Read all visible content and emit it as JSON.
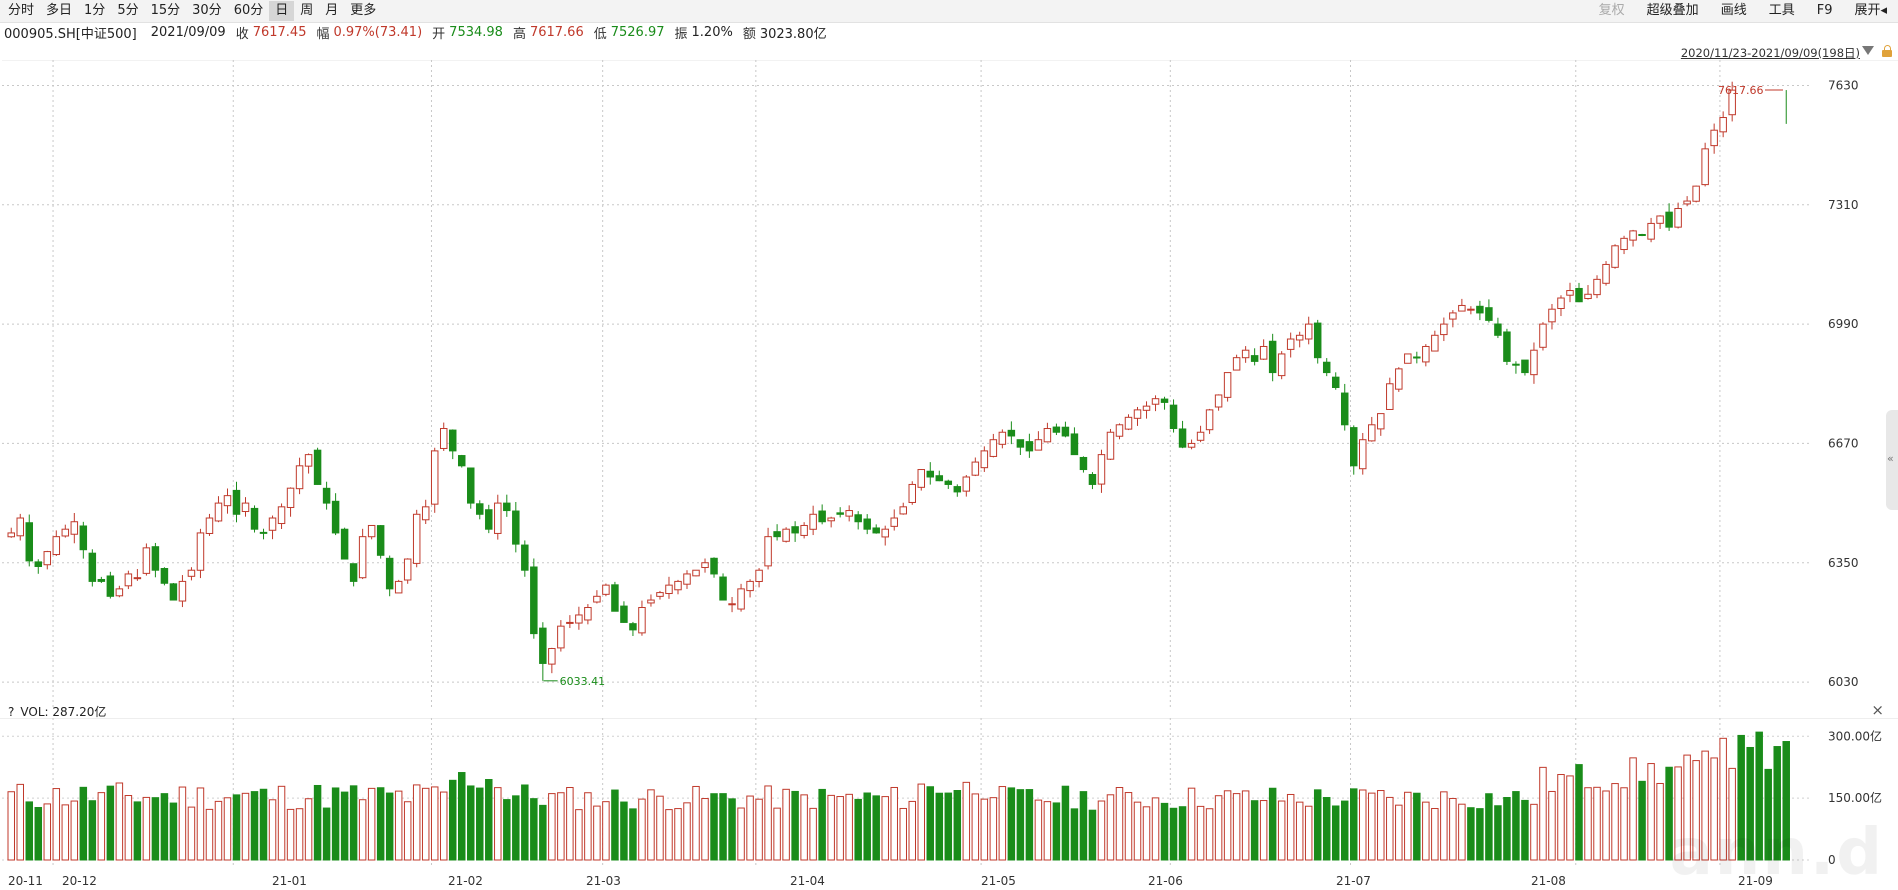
{
  "toolbar": {
    "periods": [
      "分时",
      "多日",
      "1分",
      "5分",
      "15分",
      "30分",
      "60分",
      "日",
      "周",
      "月",
      "更多"
    ],
    "active_period": "日",
    "right_items": [
      {
        "label": "复权",
        "disabled": true
      },
      {
        "label": "超级叠加",
        "disabled": false
      },
      {
        "label": "画线",
        "disabled": false
      },
      {
        "label": "工具",
        "disabled": false
      },
      {
        "label": "F9",
        "disabled": false
      },
      {
        "label": "展开◂",
        "disabled": false
      }
    ]
  },
  "quote": {
    "code": "000905.SH[中证500]",
    "date": "2021/09/09",
    "close_label": "收",
    "close": "7617.45",
    "change_label": "幅",
    "change": "0.97%(73.41)",
    "open_label": "开",
    "open": "7534.98",
    "high_label": "高",
    "high": "7617.66",
    "low_label": "低",
    "low": "7526.97",
    "amplitude_label": "振",
    "amplitude": "1.20%",
    "amount_label": "额",
    "amount": "3023.80亿"
  },
  "range_label": "2020/11/23-2021/09/09(198日)",
  "chart_data": [
    {
      "type": "candlestick",
      "title": "",
      "yticks": [
        6030,
        6350,
        6670,
        6990,
        7310,
        7630
      ],
      "ylim": [
        5990,
        7650
      ],
      "grid": true,
      "count": 198,
      "seed_closes": [
        6430,
        6470,
        6355,
        6340,
        6380,
        6420,
        6440,
        6460,
        6385,
        6300,
        6300,
        6260,
        6280,
        6320,
        6310,
        6390,
        6330,
        6295,
        6250,
        6300,
        6330,
        6430,
        6470,
        6510,
        6530,
        6480,
        6510,
        6440,
        6430,
        6470,
        6500,
        6550,
        6610,
        6640,
        6560,
        6510,
        6430,
        6360,
        6300,
        6420,
        6450,
        6370,
        6280,
        6300,
        6360,
        6480,
        6500,
        6650,
        6710,
        6650,
        6610,
        6510,
        6480,
        6440,
        6510,
        6490,
        6400,
        6330,
        6160,
        6080,
        6120,
        6180,
        6190,
        6210,
        6230,
        6260,
        6290,
        6220,
        6190,
        6170,
        6230,
        6250,
        6270,
        6290,
        6300,
        6320,
        6330,
        6350,
        6320,
        6250,
        6240,
        6280,
        6300,
        6330,
        6420,
        6420,
        6440,
        6430,
        6450,
        6480,
        6460,
        6470,
        6480,
        6490,
        6460,
        6440,
        6430,
        6440,
        6470,
        6500,
        6560,
        6600,
        6580,
        6570,
        6560,
        6540,
        6580,
        6620,
        6650,
        6680,
        6700,
        6690,
        6660,
        6650,
        6680,
        6710,
        6700,
        6690,
        6640,
        6600,
        6560,
        6640,
        6700,
        6720,
        6740,
        6760,
        6770,
        6790,
        6780,
        6710,
        6660,
        6670,
        6700,
        6760,
        6800,
        6860,
        6900,
        6920,
        6890,
        6930,
        6860,
        6910,
        6950,
        6960,
        6990,
        6900,
        6860,
        6820,
        6720,
        6610,
        6680,
        6720,
        6750,
        6830,
        6870,
        6910,
        6900,
        6930,
        6960,
        6990,
        7020,
        7040,
        7030,
        7020,
        7000,
        6960,
        6890,
        6880,
        6860,
        6920,
        6990,
        7030,
        7060,
        7080,
        7050,
        7070,
        7110,
        7150,
        7200,
        7220,
        7240,
        7230,
        7260,
        7280,
        7250,
        7300,
        7320,
        7360,
        7460,
        7510,
        7544,
        7617.45
      ],
      "last": {
        "date": "2021/09/09",
        "open": 7534.98,
        "high": 7617.66,
        "low": 7526.97,
        "close": 7617.45
      },
      "annotations": [
        {
          "text": "7617.66",
          "value": 7617.66,
          "color": "#c0392b"
        },
        {
          "text": "6033.41",
          "value": 6033.41,
          "color": "#1a8c1a"
        }
      ],
      "xticks": [
        "20-11",
        "20-12",
        "21-01",
        "21-02",
        "21-03",
        "21-04",
        "21-05",
        "21-06",
        "21-07",
        "21-08",
        "21-09"
      ],
      "up_color": "#c0392b",
      "down_color": "#1a8c1a"
    },
    {
      "type": "bar",
      "title": "",
      "series_name": "VOL",
      "current_label": "VOL: 287.20亿",
      "yticks_labels": [
        "0",
        "150.00亿",
        "300.00亿"
      ],
      "yticks": [
        0,
        150,
        300
      ],
      "ylim": [
        0,
        320
      ],
      "unit": "亿",
      "last_value": 287.2,
      "peak_values": [
        310,
        302,
        295
      ]
    }
  ],
  "vol_help": "?",
  "vol_close": "×",
  "collapse_arrow": "«",
  "watermark": "ann.d"
}
